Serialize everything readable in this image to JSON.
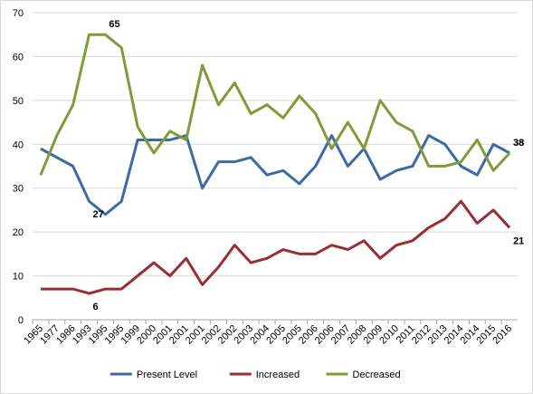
{
  "chart_data": {
    "type": "line",
    "categories": [
      "1965",
      "1977",
      "1986",
      "1993",
      "1995",
      "1995",
      "1999",
      "2000",
      "2001",
      "2001",
      "2001",
      "2002",
      "2002",
      "2003",
      "2004",
      "2005",
      "2005",
      "2006",
      "2006",
      "2007",
      "2008",
      "2009",
      "2010",
      "2011",
      "2012",
      "2013",
      "2014",
      "2014",
      "2015",
      "2016"
    ],
    "series": [
      {
        "name": "Present Level",
        "color": "#3c69a7",
        "values": [
          39,
          37,
          35,
          27,
          24,
          27,
          41,
          41,
          41,
          42,
          30,
          36,
          36,
          37,
          33,
          34,
          31,
          35,
          42,
          35,
          39,
          32,
          34,
          35,
          42,
          40,
          35,
          33,
          40,
          38
        ],
        "value_labels": [
          null,
          null,
          null,
          "27",
          null,
          null,
          null,
          null,
          null,
          null,
          null,
          null,
          null,
          null,
          null,
          null,
          null,
          null,
          null,
          null,
          null,
          null,
          null,
          null,
          null,
          null,
          null,
          null,
          null,
          "38"
        ]
      },
      {
        "name": "Increased",
        "color": "#9a2e31",
        "values": [
          7,
          7,
          7,
          6,
          7,
          7,
          10,
          13,
          10,
          14,
          8,
          12,
          17,
          13,
          14,
          16,
          15,
          15,
          17,
          16,
          18,
          14,
          17,
          18,
          21,
          23,
          27,
          22,
          25,
          21
        ],
        "value_labels": [
          null,
          null,
          null,
          "6",
          null,
          null,
          null,
          null,
          null,
          null,
          null,
          null,
          null,
          null,
          null,
          null,
          null,
          null,
          null,
          null,
          null,
          null,
          null,
          null,
          null,
          null,
          null,
          null,
          null,
          "21"
        ]
      },
      {
        "name": "Decreased",
        "color": "#7f9b3a",
        "values": [
          33,
          42,
          49,
          65,
          65,
          62,
          44,
          38,
          43,
          41,
          58,
          49,
          54,
          47,
          49,
          46,
          51,
          47,
          39,
          45,
          39,
          50,
          45,
          43,
          35,
          35,
          36,
          41,
          34,
          38
        ],
        "value_labels": [
          null,
          null,
          null,
          null,
          "65",
          null,
          null,
          null,
          null,
          null,
          null,
          null,
          null,
          null,
          null,
          null,
          null,
          null,
          null,
          null,
          null,
          null,
          null,
          null,
          null,
          null,
          null,
          null,
          null,
          "38"
        ]
      }
    ],
    "ylim": [
      0,
      70
    ],
    "yticks": [
      0,
      10,
      20,
      30,
      40,
      50,
      60,
      70
    ],
    "grid": true,
    "legend": "bottom"
  }
}
